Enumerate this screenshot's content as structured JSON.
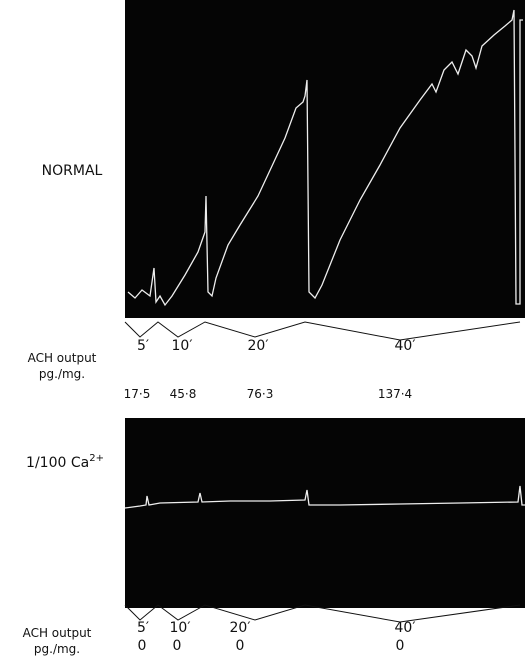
{
  "panels": [
    {
      "label": "NORMAL",
      "intervals": [
        "5′",
        "10′",
        "20′",
        "40′"
      ],
      "output_label": [
        "ACH output",
        "pg./mg."
      ],
      "outputs": [
        "17·5",
        "45·8",
        "76·3",
        "137·4"
      ]
    },
    {
      "label": "1/100 Ca",
      "label_sup": "2+",
      "intervals": [
        "5′",
        "10′",
        "20′",
        "40′"
      ],
      "output_label": [
        "ACH output",
        "pg./mg."
      ],
      "outputs": [
        "0",
        "0",
        "0",
        "0"
      ]
    }
  ]
}
